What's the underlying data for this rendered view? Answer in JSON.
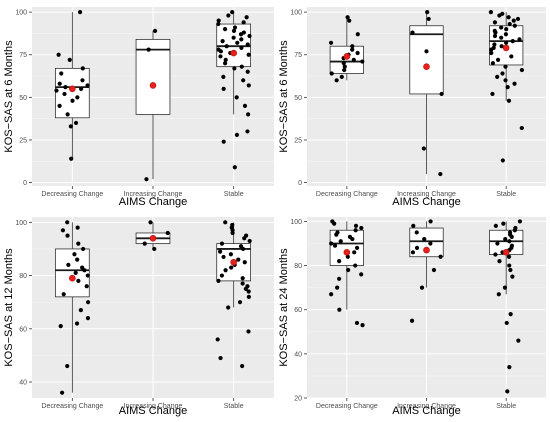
{
  "chart_data": [
    {
      "type": "boxplot",
      "xlabel": "AIMS Change",
      "ylabel": "KOS−SAS at 6 Months",
      "ylim": [
        -2,
        103
      ],
      "yticks": [
        0,
        25,
        50,
        75,
        100
      ],
      "categories": [
        "Decreasing Change",
        "Increasing Change",
        "Stable"
      ],
      "groups": [
        {
          "q1": 38,
          "median": 56,
          "q3": 67,
          "whisker_low": 14,
          "whisker_high": 100,
          "mean": 55,
          "points": [
            100,
            75,
            72,
            67,
            64,
            60,
            58,
            57,
            56,
            55,
            54,
            52,
            50,
            48,
            45,
            40,
            35,
            33,
            14
          ]
        },
        {
          "q1": 40,
          "median": 78,
          "q3": 84,
          "whisker_low": 2,
          "whisker_high": 89,
          "mean": 57,
          "points": [
            89,
            78,
            2
          ]
        },
        {
          "q1": 68,
          "median": 80,
          "q3": 93,
          "whisker_low": 40,
          "whisker_high": 100,
          "mean": 76,
          "points": [
            100,
            98,
            97,
            95,
            94,
            93,
            91,
            90,
            89,
            88,
            87,
            86,
            85,
            84,
            83,
            82,
            81,
            80,
            79,
            78,
            77,
            76,
            75,
            74,
            72,
            70,
            68,
            67,
            65,
            62,
            60,
            57,
            55,
            50,
            45,
            40,
            30,
            28,
            24,
            9
          ]
        }
      ]
    },
    {
      "type": "boxplot",
      "xlabel": "AIMS Change",
      "ylabel": "KOS−SAS at 6 Months",
      "ylim": [
        -2,
        103
      ],
      "yticks": [
        0,
        25,
        50,
        75,
        100
      ],
      "categories": [
        "Decreasing Change",
        "Increasing Change",
        "Stable"
      ],
      "groups": [
        {
          "q1": 64,
          "median": 71,
          "q3": 80,
          "whisker_low": 60,
          "whisker_high": 97,
          "mean": 74,
          "points": [
            97,
            95,
            87,
            82,
            80,
            78,
            76,
            75,
            73,
            72,
            71,
            70,
            68,
            66,
            64,
            62,
            60
          ]
        },
        {
          "q1": 52,
          "median": 87,
          "q3": 92,
          "whisker_low": 5,
          "whisker_high": 100,
          "mean": 68,
          "points": [
            100,
            96,
            88,
            77,
            52,
            20,
            5
          ]
        },
        {
          "q1": 69,
          "median": 83,
          "q3": 92,
          "whisker_low": 48,
          "whisker_high": 100,
          "mean": 79,
          "points": [
            100,
            99,
            98,
            97,
            96,
            95,
            94,
            93,
            92,
            91,
            90,
            89,
            88,
            87,
            86,
            85,
            84,
            83,
            82,
            81,
            80,
            79,
            78,
            76,
            74,
            72,
            70,
            68,
            66,
            64,
            62,
            60,
            58,
            56,
            52,
            48,
            32,
            13
          ]
        }
      ]
    },
    {
      "type": "boxplot",
      "xlabel": "AIMS Change",
      "ylabel": "KOS−SAS at 12 Months",
      "ylim": [
        34,
        102
      ],
      "yticks": [
        40,
        60,
        80,
        100
      ],
      "categories": [
        "Decreasing Change",
        "Increasing Change",
        "Stable"
      ],
      "groups": [
        {
          "q1": 72,
          "median": 82,
          "q3": 90,
          "whisker_low": 36,
          "whisker_high": 100,
          "mean": 79,
          "points": [
            100,
            98,
            97,
            95,
            92,
            90,
            88,
            86,
            84,
            83,
            82,
            81,
            80,
            78,
            76,
            73,
            70,
            67,
            64,
            62,
            61,
            46,
            36
          ]
        },
        {
          "q1": 92,
          "median": 94,
          "q3": 96,
          "whisker_low": 90,
          "whisker_high": 100,
          "mean": 94,
          "points": [
            100,
            96,
            94,
            92,
            90
          ]
        },
        {
          "q1": 78,
          "median": 90,
          "q3": 92,
          "whisker_low": 68,
          "whisker_high": 100,
          "mean": 85,
          "points": [
            100,
            99,
            98,
            97,
            96,
            95,
            94,
            93,
            92,
            91,
            90,
            89,
            88,
            87,
            86,
            85,
            84,
            83,
            82,
            80,
            79,
            78,
            77,
            76,
            75,
            74,
            72,
            70,
            68,
            59,
            56,
            49,
            46
          ]
        }
      ]
    },
    {
      "type": "boxplot",
      "xlabel": "AIMS Change",
      "ylabel": "KOS−SAS at 24 Months",
      "ylim": [
        20,
        102
      ],
      "yticks": [
        20,
        40,
        60,
        80,
        100
      ],
      "categories": [
        "Decreasing Change",
        "Increasing Change",
        "Stable"
      ],
      "groups": [
        {
          "q1": 80,
          "median": 90,
          "q3": 96,
          "whisker_low": 60,
          "whisker_high": 100,
          "mean": 86,
          "points": [
            100,
            99,
            98,
            97,
            96,
            95,
            94,
            93,
            92,
            91,
            90,
            89,
            88,
            86,
            84,
            82,
            80,
            78,
            76,
            74,
            70,
            67,
            60,
            54,
            53
          ]
        },
        {
          "q1": 84,
          "median": 91,
          "q3": 97,
          "whisker_low": 70,
          "whisker_high": 100,
          "mean": 87,
          "points": [
            100,
            98,
            95,
            92,
            90,
            88,
            86,
            84,
            78,
            70,
            55
          ]
        },
        {
          "q1": 85,
          "median": 91,
          "q3": 96,
          "whisker_low": 67,
          "whisker_high": 100,
          "mean": 86,
          "points": [
            100,
            99,
            98,
            97,
            96,
            95,
            94,
            93,
            92,
            91,
            90,
            89,
            88,
            87,
            86,
            85,
            84,
            82,
            80,
            78,
            75,
            70,
            67,
            58,
            54,
            46,
            34,
            23
          ]
        }
      ]
    }
  ]
}
